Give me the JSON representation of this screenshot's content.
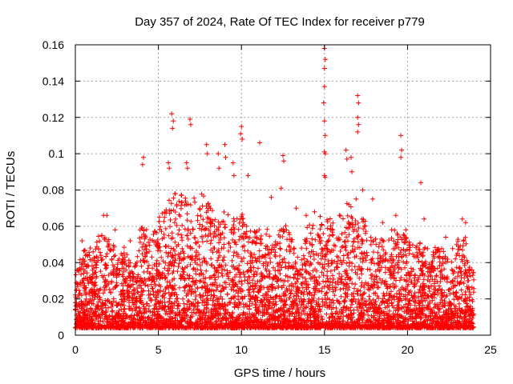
{
  "chart_data": {
    "type": "scatter",
    "title": "Day 357 of 2024, Rate Of TEC Index for receiver p779",
    "xlabel": "GPS time / hours",
    "ylabel": "ROTI / TECUs",
    "xlim": [
      0,
      25
    ],
    "ylim": [
      0,
      0.16
    ],
    "x_ticks": [
      0,
      5,
      10,
      15,
      20,
      25
    ],
    "y_ticks": [
      0,
      0.02,
      0.04,
      0.06,
      0.08,
      0.1,
      0.12,
      0.14,
      0.16
    ],
    "x_tick_labels": [
      "0",
      "5",
      "10",
      "15",
      "20",
      "25"
    ],
    "y_tick_labels": [
      "0",
      "0.02",
      "0.04",
      "0.06",
      "0.08",
      "0.1",
      "0.12",
      "0.14",
      "0.16"
    ],
    "grid": true,
    "marker": "+",
    "color": "#ff0000",
    "series": [
      {
        "name": "ROTI",
        "points": [
          [
            5.8,
            0.122
          ],
          [
            5.9,
            0.118
          ],
          [
            5.85,
            0.114
          ],
          [
            6.9,
            0.119
          ],
          [
            6.95,
            0.116
          ],
          [
            15.0,
            0.158
          ],
          [
            15.05,
            0.152
          ],
          [
            15.0,
            0.147
          ],
          [
            15.0,
            0.137
          ],
          [
            14.95,
            0.128
          ],
          [
            15.0,
            0.118
          ],
          [
            15.05,
            0.11
          ],
          [
            15.0,
            0.101
          ],
          [
            15.05,
            0.1
          ],
          [
            15.0,
            0.088
          ],
          [
            15.05,
            0.087
          ],
          [
            17.0,
            0.132
          ],
          [
            17.05,
            0.128
          ],
          [
            17.0,
            0.12
          ],
          [
            17.05,
            0.116
          ],
          [
            17.0,
            0.112
          ],
          [
            10.0,
            0.115
          ],
          [
            9.95,
            0.111
          ],
          [
            10.05,
            0.108
          ],
          [
            11.1,
            0.106
          ],
          [
            19.6,
            0.11
          ],
          [
            19.65,
            0.102
          ],
          [
            19.6,
            0.098
          ],
          [
            20.8,
            0.084
          ],
          [
            4.1,
            0.098
          ],
          [
            4.05,
            0.094
          ],
          [
            7.9,
            0.105
          ],
          [
            7.95,
            0.1
          ],
          [
            9.0,
            0.105
          ],
          [
            9.05,
            0.098
          ],
          [
            12.5,
            0.099
          ],
          [
            12.55,
            0.096
          ],
          [
            16.3,
            0.102
          ],
          [
            16.35,
            0.097
          ],
          [
            6.7,
            0.095
          ],
          [
            6.75,
            0.092
          ],
          [
            5.6,
            0.095
          ],
          [
            5.65,
            0.092
          ],
          [
            8.6,
            0.1
          ],
          [
            8.65,
            0.092
          ],
          [
            9.5,
            0.095
          ],
          [
            9.55,
            0.088
          ],
          [
            10.4,
            0.088
          ],
          [
            16.6,
            0.098
          ],
          [
            16.65,
            0.09
          ],
          [
            11.8,
            0.076
          ],
          [
            12.4,
            0.081
          ],
          [
            13.3,
            0.07
          ],
          [
            13.9,
            0.066
          ],
          [
            14.4,
            0.068
          ],
          [
            16.9,
            0.075
          ],
          [
            17.3,
            0.08
          ],
          [
            17.9,
            0.075
          ],
          [
            18.5,
            0.062
          ],
          [
            19.3,
            0.066
          ],
          [
            19.9,
            0.058
          ],
          [
            21.0,
            0.064
          ],
          [
            22.3,
            0.054
          ],
          [
            23.3,
            0.064
          ],
          [
            23.5,
            0.062
          ],
          [
            1.7,
            0.066
          ],
          [
            1.9,
            0.066
          ],
          [
            2.4,
            0.058
          ],
          [
            3.3,
            0.052
          ],
          [
            3.9,
            0.058
          ],
          [
            0.4,
            0.052
          ],
          [
            0.9,
            0.048
          ]
        ]
      }
    ],
    "dense_band_description_free": true
  }
}
